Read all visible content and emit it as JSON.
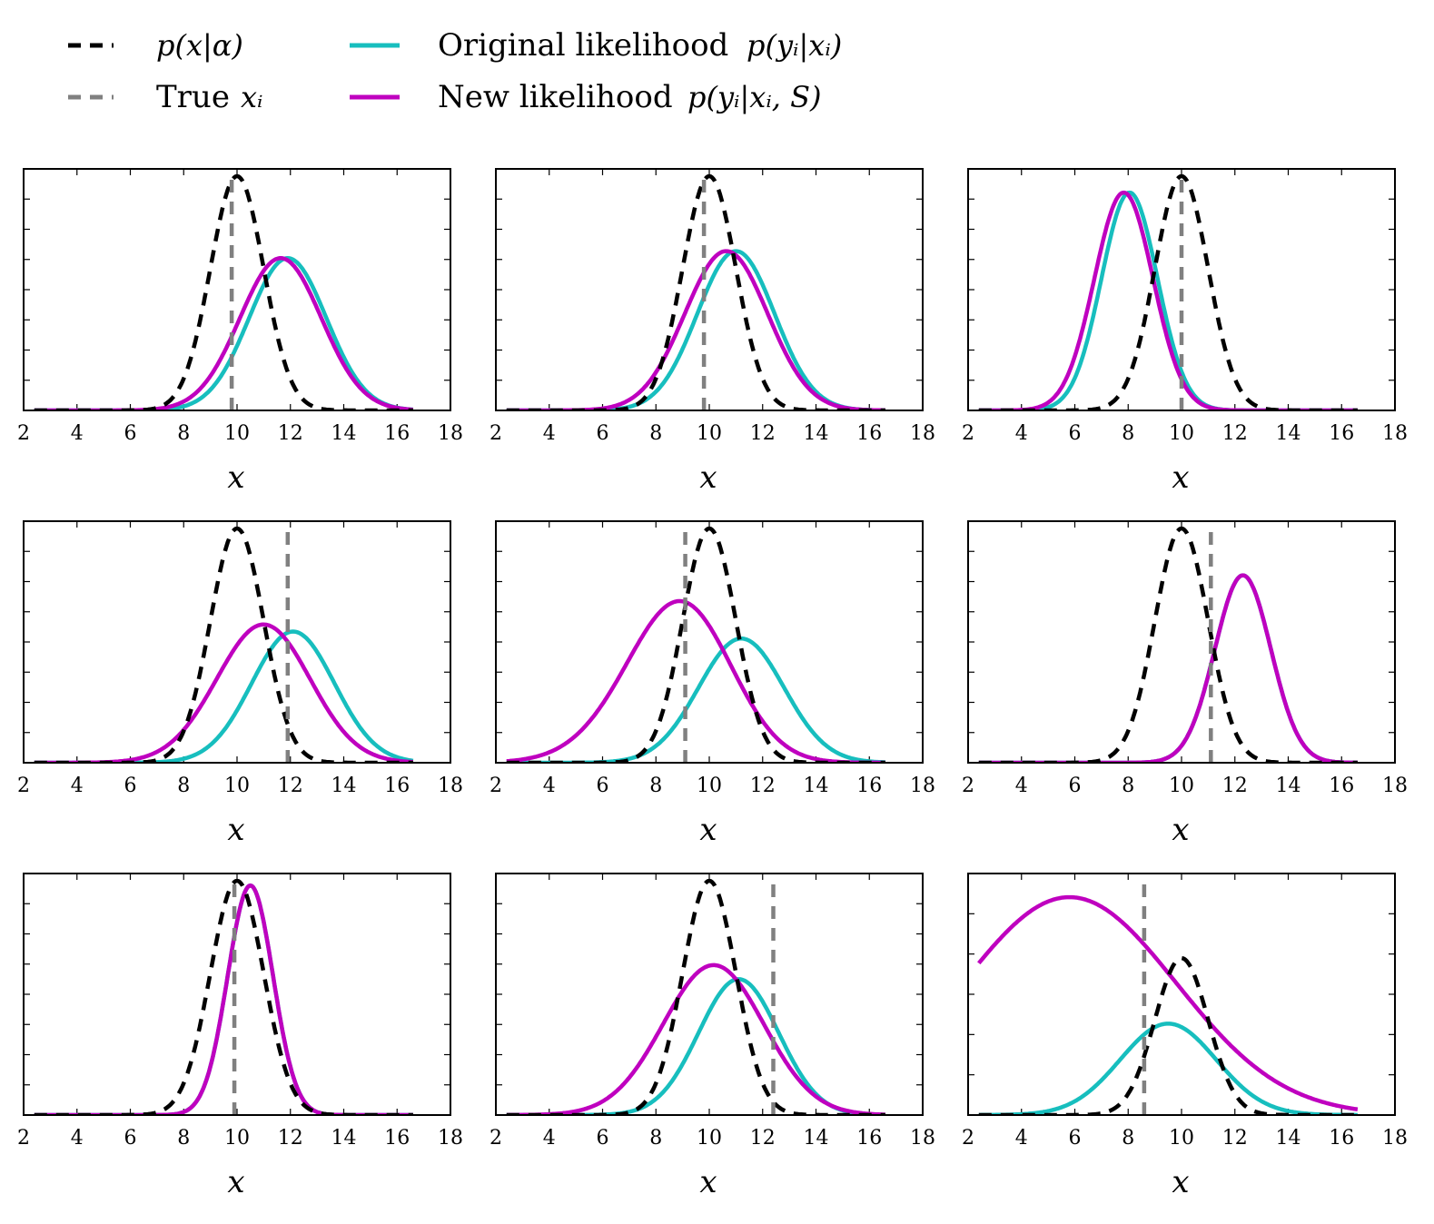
{
  "legend": {
    "entries": [
      {
        "text": "",
        "math": "p(x|α)",
        "color": "#000000",
        "dash": true
      },
      {
        "text": "True",
        "math": "xᵢ",
        "color": "#808080",
        "dash": true
      },
      {
        "text": "Original likelihood",
        "math": "p(yᵢ|xᵢ)",
        "color": "#17bebe",
        "dash": false
      },
      {
        "text": "New likelihood",
        "math": "p(yᵢ|xᵢ, S)",
        "color": "#bf00bf",
        "dash": false
      }
    ]
  },
  "chart_data": [
    {
      "type": "line",
      "xlabel": "x",
      "xlim": [
        2,
        18
      ],
      "xticks": [
        2,
        4,
        6,
        8,
        10,
        12,
        14,
        16,
        18
      ],
      "grid": false,
      "prior": {
        "mu": 10,
        "sigma": 1.0,
        "peak": 1.0
      },
      "true_x": 9.8,
      "series": [
        {
          "mu": 11.9,
          "sigma": 1.45,
          "skew": 0.0,
          "peak": 0.65
        },
        {
          "mu": 11.9,
          "sigma": 1.55,
          "skew": -0.22,
          "peak": 0.65
        }
      ]
    },
    {
      "type": "line",
      "xlabel": "x",
      "xlim": [
        2,
        18
      ],
      "xticks": [
        2,
        4,
        6,
        8,
        10,
        12,
        14,
        16,
        18
      ],
      "grid": false,
      "prior": {
        "mu": 10,
        "sigma": 1.0,
        "peak": 1.0
      },
      "true_x": 9.8,
      "series": [
        {
          "mu": 11.0,
          "sigma": 1.45,
          "skew": 0.0,
          "peak": 0.68
        },
        {
          "mu": 11.0,
          "sigma": 1.6,
          "skew": -0.3,
          "peak": 0.68
        }
      ]
    },
    {
      "type": "line",
      "xlabel": "x",
      "xlim": [
        2,
        18
      ],
      "xticks": [
        2,
        4,
        6,
        8,
        10,
        12,
        14,
        16,
        18
      ],
      "grid": false,
      "prior": {
        "mu": 10,
        "sigma": 1.0,
        "peak": 1.0
      },
      "true_x": 10.0,
      "series": [
        {
          "mu": 8.05,
          "sigma": 1.05,
          "skew": 0.0,
          "peak": 0.93
        },
        {
          "mu": 8.05,
          "sigma": 1.12,
          "skew": -0.25,
          "peak": 0.93
        }
      ]
    },
    {
      "type": "line",
      "xlabel": "x",
      "xlim": [
        2,
        18
      ],
      "xticks": [
        2,
        4,
        6,
        8,
        10,
        12,
        14,
        16,
        18
      ],
      "grid": false,
      "prior": {
        "mu": 10,
        "sigma": 1.0,
        "peak": 1.0
      },
      "true_x": 11.9,
      "series": [
        {
          "mu": 12.1,
          "sigma": 1.55,
          "skew": 0.0,
          "peak": 0.56
        },
        {
          "mu": 11.7,
          "sigma": 1.9,
          "skew": -0.55,
          "peak": 0.59
        }
      ]
    },
    {
      "type": "line",
      "xlabel": "x",
      "xlim": [
        2,
        18
      ],
      "xticks": [
        2,
        4,
        6,
        8,
        10,
        12,
        14,
        16,
        18
      ],
      "grid": false,
      "prior": {
        "mu": 10,
        "sigma": 1.0,
        "peak": 1.0
      },
      "true_x": 9.1,
      "series": [
        {
          "mu": 11.2,
          "sigma": 1.6,
          "skew": 0.0,
          "peak": 0.53
        },
        {
          "mu": 10.1,
          "sigma": 2.4,
          "skew": -1.0,
          "peak": 0.69
        }
      ]
    },
    {
      "type": "line",
      "xlabel": "x",
      "xlim": [
        2,
        18
      ],
      "xticks": [
        2,
        4,
        6,
        8,
        10,
        12,
        14,
        16,
        18
      ],
      "grid": false,
      "prior": {
        "mu": 10,
        "sigma": 1.0,
        "peak": 1.0
      },
      "true_x": 11.1,
      "series": [
        {
          "mu": 12.3,
          "sigma": 1.05,
          "skew": 0.0,
          "peak": 0.8
        },
        {
          "mu": 12.3,
          "sigma": 1.05,
          "skew": 0.0,
          "peak": 0.8
        }
      ]
    },
    {
      "type": "line",
      "xlabel": "x",
      "xlim": [
        2,
        18
      ],
      "xticks": [
        2,
        4,
        6,
        8,
        10,
        12,
        14,
        16,
        18
      ],
      "grid": false,
      "prior": {
        "mu": 10,
        "sigma": 1.0,
        "peak": 1.0
      },
      "true_x": 9.9,
      "series": [
        {
          "mu": 10.5,
          "sigma": 0.85,
          "skew": 0.0,
          "peak": 0.98
        },
        {
          "mu": 10.5,
          "sigma": 0.85,
          "skew": 0.0,
          "peak": 0.98
        }
      ]
    },
    {
      "type": "line",
      "xlabel": "x",
      "xlim": [
        2,
        18
      ],
      "xticks": [
        2,
        4,
        6,
        8,
        10,
        12,
        14,
        16,
        18
      ],
      "grid": false,
      "prior": {
        "mu": 10,
        "sigma": 1.0,
        "peak": 1.0
      },
      "true_x": 12.4,
      "series": [
        {
          "mu": 11.1,
          "sigma": 1.5,
          "skew": 0.0,
          "peak": 0.58
        },
        {
          "mu": 10.8,
          "sigma": 2.0,
          "skew": -0.45,
          "peak": 0.64
        }
      ]
    },
    {
      "type": "line",
      "xlabel": "x",
      "xlim": [
        2,
        18
      ],
      "xticks": [
        2,
        4,
        6,
        8,
        10,
        12,
        14,
        16,
        18
      ],
      "grid": false,
      "prior": {
        "mu": 10,
        "sigma": 1.0,
        "peak": 0.67
      },
      "true_x": 8.6,
      "series": [
        {
          "mu": 9.5,
          "sigma": 1.8,
          "skew": 0.0,
          "peak": 0.39
        },
        {
          "mu": 5.8,
          "sigma": 4.0,
          "skew": 0.0,
          "peak": 0.93
        }
      ]
    }
  ]
}
